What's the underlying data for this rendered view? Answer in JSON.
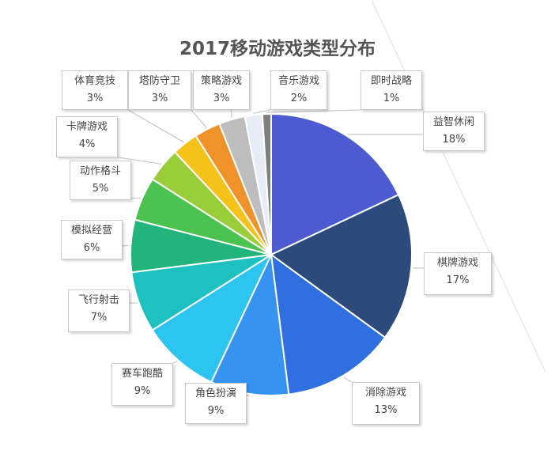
{
  "title": "2017移动游戏类型分布",
  "colors": {
    "deco_line": "#e9e9e9",
    "label_border": "#c9c9c9",
    "leader": "#c8c8c8",
    "slice_border": "#ffffff"
  },
  "chart_data": {
    "type": "pie",
    "title": "2017移动游戏类型分布",
    "start": "12 o'clock, clockwise",
    "slices": [
      {
        "label": "益智休闲",
        "value": 18,
        "display": "18%",
        "color": "#4e5bd0"
      },
      {
        "label": "棋牌游戏",
        "value": 17,
        "display": "17%",
        "color": "#2d4a7d"
      },
      {
        "label": "消除游戏",
        "value": 13,
        "display": "13%",
        "color": "#2f6fe0"
      },
      {
        "label": "角色扮演",
        "value": 9,
        "display": "9%",
        "color": "#3694f0"
      },
      {
        "label": "赛车跑酷",
        "value": 9,
        "display": "9%",
        "color": "#2ec4f0"
      },
      {
        "label": "飞行射击",
        "value": 7,
        "display": "7%",
        "color": "#1ec1bf"
      },
      {
        "label": "模拟经营",
        "value": 6,
        "display": "6%",
        "color": "#23b47c"
      },
      {
        "label": "动作格斗",
        "value": 5,
        "display": "5%",
        "color": "#4cc34e"
      },
      {
        "label": "卡牌游戏",
        "value": 4,
        "display": "4%",
        "color": "#9acd3a"
      },
      {
        "label": "体育竞技",
        "value": 3,
        "display": "3%",
        "color": "#f5c21b"
      },
      {
        "label": "塔防守卫",
        "value": 3,
        "display": "3%",
        "color": "#f0922a"
      },
      {
        "label": "策略游戏",
        "value": 3,
        "display": "3%",
        "color": "#bdbdbd"
      },
      {
        "label": "音乐游戏",
        "value": 2,
        "display": "2%",
        "color": "#e6edf7"
      },
      {
        "label": "即时战略",
        "value": 1,
        "display": "1%",
        "color": "#7f7f7f"
      }
    ]
  }
}
